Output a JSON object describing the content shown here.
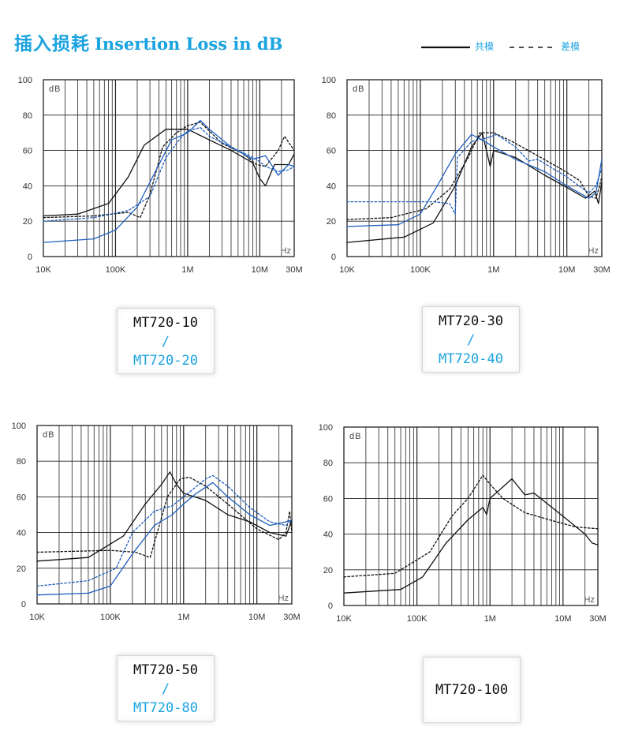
{
  "header": {
    "title_cn": "插入损耗",
    "title_en": "Insertion Loss in dB",
    "legend_common": "共模",
    "legend_diff": "差模"
  },
  "colors": {
    "accent": "#1aa3e0",
    "black_trace": "#111111",
    "blue_trace": "#1f5fbf",
    "grid": "#222222"
  },
  "models": {
    "c1": {
      "black": "MT720-10",
      "sep": "/",
      "blue": "MT720-20"
    },
    "c2": {
      "black": "MT720-30",
      "sep": "/",
      "blue": "MT720-40"
    },
    "c3": {
      "black": "MT720-50",
      "sep": "/",
      "blue": "MT720-80"
    },
    "c4": {
      "black": "MT720-100"
    }
  },
  "chart_data": [
    {
      "type": "line",
      "xscale": "log",
      "xlim": [
        10000,
        30000000
      ],
      "ylim": [
        0,
        100
      ],
      "x_tick_labels": [
        "10K",
        "100K",
        "1M",
        "10M",
        "30M"
      ],
      "y_tick_labels": [
        "0",
        "20",
        "40",
        "60",
        "80",
        "100"
      ],
      "ylabel": "dB",
      "xlabel": "Hz",
      "series": [
        {
          "color": "black",
          "style": "solid",
          "points": [
            [
              10000,
              23
            ],
            [
              30000,
              24
            ],
            [
              80000,
              30
            ],
            [
              150000,
              45
            ],
            [
              250000,
              63
            ],
            [
              500000,
              72
            ],
            [
              800000,
              72
            ],
            [
              1000000,
              72
            ],
            [
              2000000,
              66
            ],
            [
              4000000,
              60
            ],
            [
              8000000,
              53
            ],
            [
              10000000,
              44
            ],
            [
              12000000,
              40
            ],
            [
              16000000,
              52
            ],
            [
              25000000,
              52
            ],
            [
              30000000,
              58
            ]
          ]
        },
        {
          "color": "black",
          "style": "dashed",
          "points": [
            [
              10000,
              22
            ],
            [
              50000,
              23
            ],
            [
              150000,
              25
            ],
            [
              220000,
              22
            ],
            [
              300000,
              35
            ],
            [
              450000,
              62
            ],
            [
              700000,
              70
            ],
            [
              1000000,
              74
            ],
            [
              1500000,
              76
            ],
            [
              3000000,
              64
            ],
            [
              6000000,
              58
            ],
            [
              9000000,
              52
            ],
            [
              12000000,
              51
            ],
            [
              18000000,
              60
            ],
            [
              22000000,
              68
            ],
            [
              30000000,
              60
            ]
          ]
        },
        {
          "color": "blue",
          "style": "solid",
          "points": [
            [
              10000,
              8
            ],
            [
              50000,
              10
            ],
            [
              100000,
              15
            ],
            [
              200000,
              28
            ],
            [
              400000,
              52
            ],
            [
              600000,
              66
            ],
            [
              1000000,
              70
            ],
            [
              1500000,
              77
            ],
            [
              2000000,
              72
            ],
            [
              4000000,
              62
            ],
            [
              8000000,
              55
            ],
            [
              12000000,
              57
            ],
            [
              18000000,
              46
            ],
            [
              25000000,
              52
            ],
            [
              30000000,
              51
            ]
          ]
        },
        {
          "color": "blue",
          "style": "dashed",
          "points": [
            [
              10000,
              20
            ],
            [
              50000,
              22
            ],
            [
              150000,
              26
            ],
            [
              300000,
              34
            ],
            [
              500000,
              56
            ],
            [
              800000,
              67
            ],
            [
              1000000,
              71
            ],
            [
              1500000,
              73
            ],
            [
              2000000,
              68
            ],
            [
              5000000,
              60
            ],
            [
              9000000,
              55
            ],
            [
              12000000,
              51
            ],
            [
              18000000,
              48
            ],
            [
              25000000,
              49
            ],
            [
              30000000,
              51
            ]
          ]
        }
      ]
    },
    {
      "type": "line",
      "xscale": "log",
      "xlim": [
        10000,
        30000000
      ],
      "ylim": [
        0,
        100
      ],
      "x_tick_labels": [
        "10K",
        "100K",
        "1M",
        "10M",
        "30M"
      ],
      "y_tick_labels": [
        "0",
        "20",
        "40",
        "60",
        "80",
        "100"
      ],
      "ylabel": "dB",
      "xlabel": "Hz",
      "series": [
        {
          "color": "black",
          "style": "solid",
          "points": [
            [
              10000,
              8
            ],
            [
              60000,
              11
            ],
            [
              150000,
              19
            ],
            [
              300000,
              40
            ],
            [
              500000,
              62
            ],
            [
              700000,
              70
            ],
            [
              900000,
              51
            ],
            [
              1000000,
              60
            ],
            [
              2000000,
              56
            ],
            [
              5000000,
              46
            ],
            [
              10000000,
              39
            ],
            [
              18000000,
              33
            ],
            [
              24000000,
              37
            ],
            [
              27000000,
              30
            ],
            [
              30000000,
              42
            ]
          ]
        },
        {
          "color": "black",
          "style": "dashed",
          "points": [
            [
              10000,
              21
            ],
            [
              40000,
              22
            ],
            [
              120000,
              27
            ],
            [
              250000,
              38
            ],
            [
              450000,
              56
            ],
            [
              650000,
              70
            ],
            [
              1000000,
              70
            ],
            [
              1800000,
              65
            ],
            [
              4000000,
              57
            ],
            [
              8000000,
              50
            ],
            [
              15000000,
              43
            ],
            [
              20000000,
              34
            ],
            [
              25000000,
              33
            ],
            [
              28000000,
              40
            ],
            [
              30000000,
              45
            ]
          ]
        },
        {
          "color": "blue",
          "style": "solid",
          "points": [
            [
              10000,
              17
            ],
            [
              50000,
              18
            ],
            [
              100000,
              24
            ],
            [
              170000,
              40
            ],
            [
              300000,
              58
            ],
            [
              500000,
              69
            ],
            [
              700000,
              66
            ],
            [
              1000000,
              62
            ],
            [
              2000000,
              55
            ],
            [
              5000000,
              48
            ],
            [
              10000000,
              40
            ],
            [
              20000000,
              33
            ],
            [
              25000000,
              36
            ],
            [
              30000000,
              55
            ]
          ]
        },
        {
          "color": "blue",
          "style": "dashed",
          "points": [
            [
              10000,
              31
            ],
            [
              150000,
              31
            ],
            [
              250000,
              30
            ],
            [
              300000,
              24
            ],
            [
              320000,
              56
            ],
            [
              500000,
              65
            ],
            [
              800000,
              67
            ],
            [
              1100000,
              69
            ],
            [
              2000000,
              62
            ],
            [
              3000000,
              54
            ],
            [
              4000000,
              55
            ],
            [
              10000000,
              45
            ],
            [
              20000000,
              36
            ],
            [
              25000000,
              40
            ],
            [
              30000000,
              50
            ]
          ]
        }
      ]
    },
    {
      "type": "line",
      "xscale": "log",
      "xlim": [
        10000,
        30000000
      ],
      "ylim": [
        0,
        100
      ],
      "x_tick_labels": [
        "10K",
        "100K",
        "1M",
        "10M",
        "30M"
      ],
      "y_tick_labels": [
        "0",
        "20",
        "40",
        "60",
        "80",
        "100"
      ],
      "ylabel": "dB",
      "xlabel": "Hz",
      "series": [
        {
          "color": "black",
          "style": "solid",
          "points": [
            [
              10000,
              24
            ],
            [
              50000,
              26
            ],
            [
              150000,
              38
            ],
            [
              300000,
              56
            ],
            [
              500000,
              67
            ],
            [
              650000,
              74
            ],
            [
              800000,
              67
            ],
            [
              1000000,
              62
            ],
            [
              2000000,
              58
            ],
            [
              4000000,
              50
            ],
            [
              8000000,
              46
            ],
            [
              15000000,
              40
            ],
            [
              25000000,
              38
            ],
            [
              30000000,
              47
            ]
          ]
        },
        {
          "color": "black",
          "style": "dashed",
          "points": [
            [
              10000,
              29
            ],
            [
              100000,
              30
            ],
            [
              220000,
              29
            ],
            [
              350000,
              26
            ],
            [
              600000,
              60
            ],
            [
              900000,
              70
            ],
            [
              1200000,
              71
            ],
            [
              2000000,
              66
            ],
            [
              4000000,
              56
            ],
            [
              10000000,
              42
            ],
            [
              20000000,
              36
            ],
            [
              25000000,
              40
            ],
            [
              28000000,
              52
            ],
            [
              30000000,
              40
            ]
          ]
        },
        {
          "color": "blue",
          "style": "solid",
          "points": [
            [
              10000,
              5
            ],
            [
              50000,
              6
            ],
            [
              100000,
              10
            ],
            [
              200000,
              28
            ],
            [
              400000,
              44
            ],
            [
              700000,
              50
            ],
            [
              1000000,
              56
            ],
            [
              1500000,
              62
            ],
            [
              2500000,
              68
            ],
            [
              4000000,
              60
            ],
            [
              8000000,
              50
            ],
            [
              15000000,
              44
            ],
            [
              25000000,
              46
            ],
            [
              30000000,
              47
            ]
          ]
        },
        {
          "color": "blue",
          "style": "dashed",
          "points": [
            [
              10000,
              10
            ],
            [
              50000,
              13
            ],
            [
              120000,
              20
            ],
            [
              200000,
              40
            ],
            [
              400000,
              52
            ],
            [
              700000,
              55
            ],
            [
              1000000,
              60
            ],
            [
              2000000,
              70
            ],
            [
              2500000,
              72
            ],
            [
              4000000,
              66
            ],
            [
              8000000,
              54
            ],
            [
              15000000,
              46
            ],
            [
              25000000,
              44
            ],
            [
              30000000,
              47
            ]
          ]
        }
      ]
    },
    {
      "type": "line",
      "xscale": "log",
      "xlim": [
        10000,
        30000000
      ],
      "ylim": [
        0,
        100
      ],
      "x_tick_labels": [
        "10K",
        "100K",
        "1M",
        "10M",
        "30M"
      ],
      "y_tick_labels": [
        "0",
        "20",
        "40",
        "60",
        "80",
        "100"
      ],
      "ylabel": "dB",
      "xlabel": "Hz",
      "series": [
        {
          "color": "black",
          "style": "solid",
          "points": [
            [
              10000,
              7
            ],
            [
              60000,
              9
            ],
            [
              120000,
              16
            ],
            [
              250000,
              35
            ],
            [
              500000,
              48
            ],
            [
              800000,
              55
            ],
            [
              900000,
              51
            ],
            [
              1000000,
              60
            ],
            [
              2000000,
              71
            ],
            [
              3000000,
              62
            ],
            [
              4000000,
              63
            ],
            [
              10000000,
              50
            ],
            [
              20000000,
              40
            ],
            [
              25000000,
              35
            ],
            [
              30000000,
              34
            ]
          ]
        },
        {
          "color": "black",
          "style": "dashed",
          "points": [
            [
              10000,
              16
            ],
            [
              50000,
              18
            ],
            [
              150000,
              30
            ],
            [
              300000,
              50
            ],
            [
              500000,
              60
            ],
            [
              800000,
              73
            ],
            [
              1000000,
              68
            ],
            [
              1500000,
              60
            ],
            [
              3000000,
              52
            ],
            [
              8000000,
              47
            ],
            [
              15000000,
              44
            ],
            [
              30000000,
              43
            ]
          ]
        }
      ]
    }
  ]
}
